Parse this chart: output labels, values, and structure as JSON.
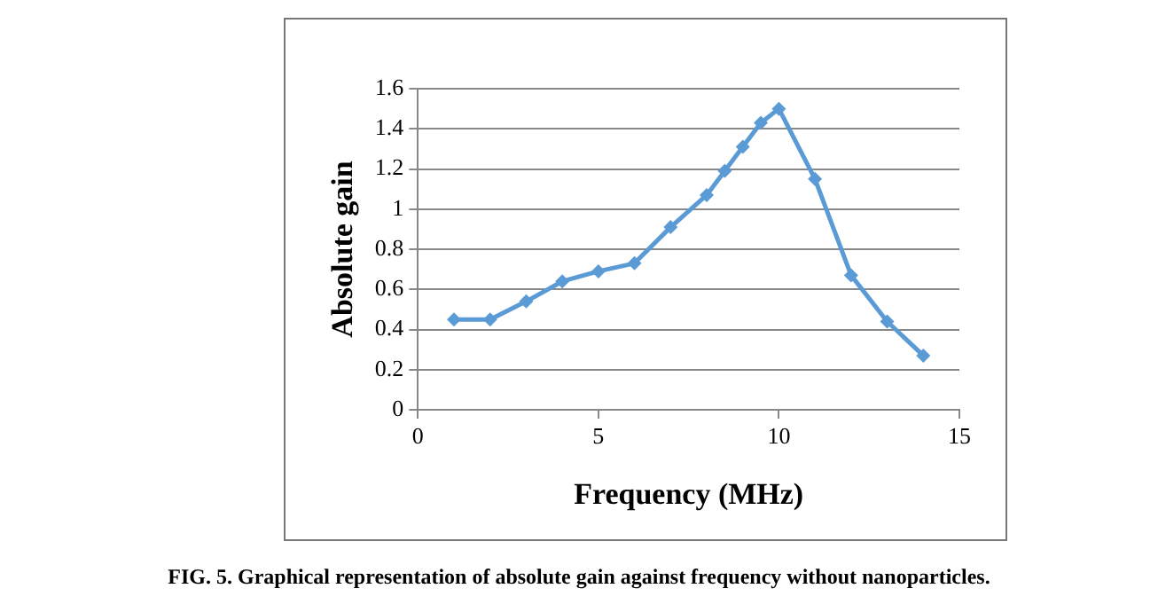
{
  "chart_data": {
    "type": "line",
    "title": "FIG. 5. Graphical representation of absolute gain against frequency without nanoparticles.",
    "xlabel": "Frequency (MHz)",
    "ylabel": "Absolute gain",
    "x": [
      1,
      2,
      3,
      4,
      5,
      6,
      7,
      8,
      8.5,
      9,
      9.5,
      10,
      11,
      12,
      13,
      14
    ],
    "series": [
      {
        "color": "#5b9bd5",
        "values": [
          0.45,
          0.45,
          0.54,
          0.64,
          0.69,
          0.73,
          0.91,
          1.07,
          1.19,
          1.31,
          1.43,
          1.5,
          1.15,
          0.67,
          0.44,
          0.27
        ]
      }
    ],
    "xlim": [
      0,
      15
    ],
    "xticks": [
      0,
      5,
      10,
      15
    ],
    "ylim": [
      0,
      1.6
    ],
    "yticks": [
      0,
      0.2,
      0.4,
      0.6,
      0.8,
      1,
      1.2,
      1.4,
      1.6
    ],
    "grid": "y",
    "legend": false,
    "marker": "diamond",
    "line_style": "solid"
  }
}
